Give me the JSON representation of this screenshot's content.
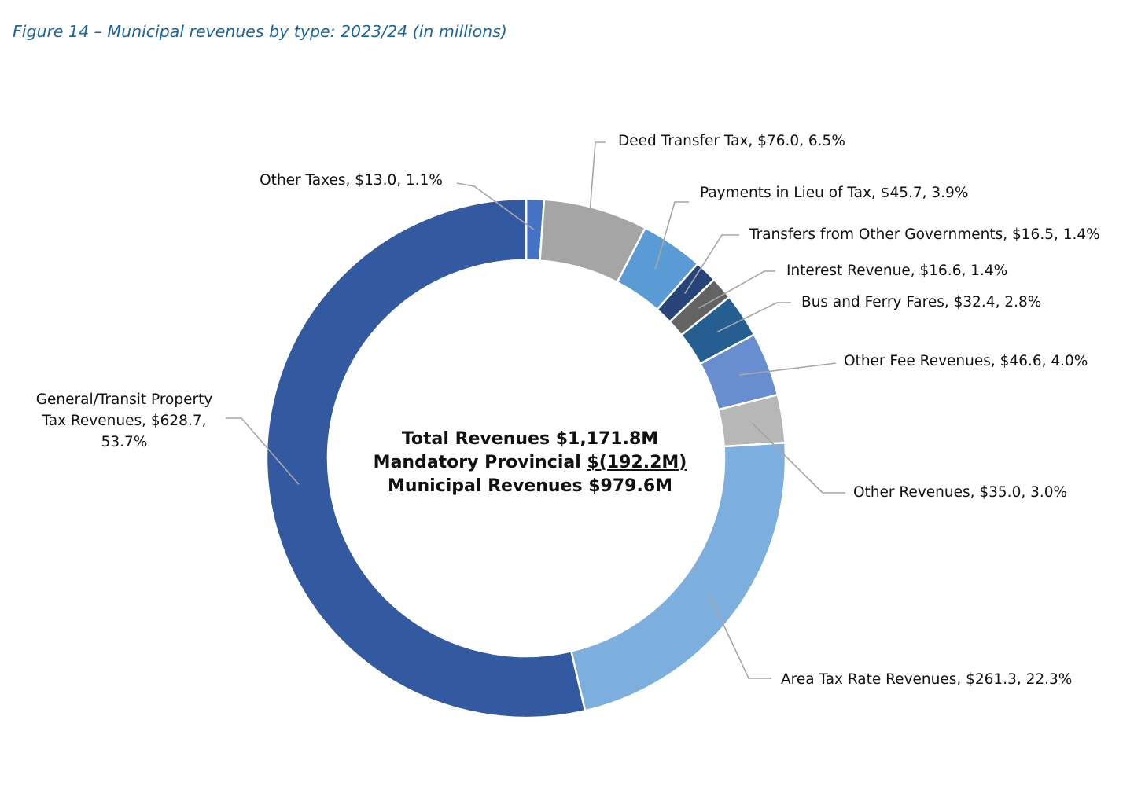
{
  "figure_title": "Figure 14 – Municipal revenues by type: 2023/24 (in millions)",
  "center": {
    "line1_label": "Total Revenues",
    "line1_value": "$1,171.8M",
    "line2_label": "Mandatory Provincial",
    "line2_value": "$(192.2M)",
    "line3_label": "Municipal Revenues",
    "line3_value": "$979.6M"
  },
  "colors": {
    "other_taxes": "#4472c4",
    "deed_transfer": "#a5a5a5",
    "payments_in_lieu": "#5b9bd5",
    "transfers": "#264478",
    "interest": "#636363",
    "bus_ferry": "#255e91",
    "other_fee": "#698ed0",
    "other_revenues": "#b7b7b7",
    "area_tax": "#7cafdd",
    "general_transit": "#335aa1",
    "leader": "#a6a6a6"
  },
  "chart_data": {
    "type": "pie",
    "donut": true,
    "title": "Municipal revenues by type: 2023/24 (in millions)",
    "units": "millions",
    "slices": [
      {
        "name": "Other Taxes",
        "value": 13.0,
        "percent": 1.1,
        "label_lines": [
          "Other Taxes, $13.0, 1.1%"
        ]
      },
      {
        "name": "Deed Transfer Tax",
        "value": 76.0,
        "percent": 6.5,
        "label_lines": [
          "Deed Transfer Tax, $76.0, 6.5%"
        ]
      },
      {
        "name": "Payments in Lieu of Tax",
        "value": 45.7,
        "percent": 3.9,
        "label_lines": [
          "Payments in Lieu of Tax, $45.7, 3.9%"
        ]
      },
      {
        "name": "Transfers from Other Governments",
        "value": 16.5,
        "percent": 1.4,
        "label_lines": [
          "Transfers from Other Governments, $16.5, 1.4%"
        ]
      },
      {
        "name": "Interest Revenue",
        "value": 16.6,
        "percent": 1.4,
        "label_lines": [
          "Interest Revenue, $16.6, 1.4%"
        ]
      },
      {
        "name": "Bus and Ferry Fares",
        "value": 32.4,
        "percent": 2.8,
        "label_lines": [
          "Bus and Ferry Fares, $32.4, 2.8%"
        ]
      },
      {
        "name": "Other Fee Revenues",
        "value": 46.6,
        "percent": 4.0,
        "label_lines": [
          "Other Fee Revenues, $46.6, 4.0%"
        ]
      },
      {
        "name": "Other Revenues",
        "value": 35.0,
        "percent": 3.0,
        "label_lines": [
          "Other Revenues, $35.0, 3.0%"
        ]
      },
      {
        "name": "Area Tax Rate Revenues",
        "value": 261.3,
        "percent": 22.3,
        "label_lines": [
          "Area Tax Rate Revenues, $261.3, 22.3%"
        ]
      },
      {
        "name": "General/Transit Property Tax Revenues",
        "value": 628.7,
        "percent": 53.7,
        "label_lines": [
          "General/Transit Property",
          "Tax Revenues, $628.7,",
          "53.7%"
        ]
      }
    ]
  }
}
